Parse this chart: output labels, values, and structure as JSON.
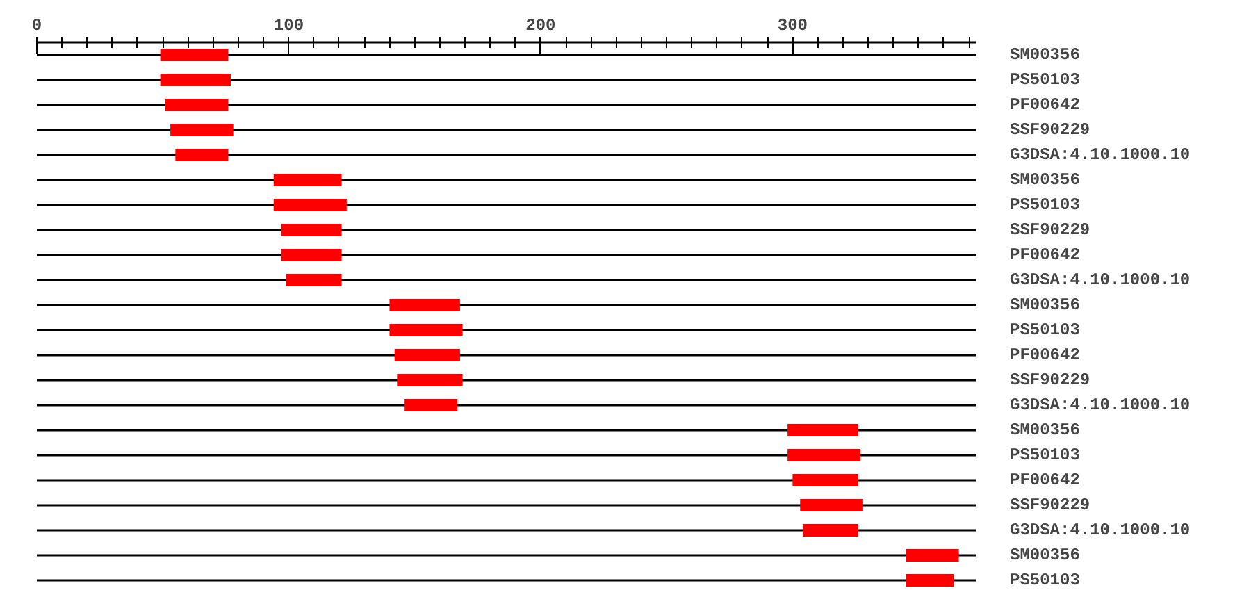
{
  "chart_data": {
    "type": "bar",
    "orientation": "horizontal",
    "categories": [
      "SM00356",
      "PS50103",
      "PF00642",
      "SSF90229",
      "G3DSA:4.10.1000.10",
      "SM00356",
      "PS50103",
      "SSF90229",
      "PF00642",
      "G3DSA:4.10.1000.10",
      "SM00356",
      "PS50103",
      "PF00642",
      "SSF90229",
      "G3DSA:4.10.1000.10",
      "SM00356",
      "PS50103",
      "PF00642",
      "SSF90229",
      "G3DSA:4.10.1000.10",
      "SM00356",
      "PS50103"
    ],
    "base": [
      49,
      49,
      51,
      53,
      55,
      94,
      94,
      97,
      97,
      99,
      140,
      140,
      142,
      143,
      146,
      298,
      298,
      300,
      303,
      304,
      345,
      345
    ],
    "values": [
      27,
      28,
      25,
      25,
      21,
      27,
      29,
      24,
      24,
      22,
      28,
      29,
      26,
      26,
      21,
      28,
      29,
      26,
      25,
      22,
      21,
      19
    ],
    "color": "#ff0000",
    "xlim": [
      0,
      373
    ],
    "xticks": [
      0,
      {
        "value": 10,
        "label": null
      },
      {
        "value": 20,
        "label": null
      },
      {
        "value": 30,
        "label": null
      },
      {
        "value": 40,
        "label": null
      },
      {
        "value": 50,
        "label": null
      },
      {
        "value": 60,
        "label": null
      },
      {
        "value": 70,
        "label": null
      },
      {
        "value": 80,
        "label": null
      },
      {
        "value": 90,
        "label": null
      },
      100,
      {
        "value": 110,
        "label": null
      },
      {
        "value": 120,
        "label": null
      },
      {
        "value": 130,
        "label": null
      },
      {
        "value": 140,
        "label": null
      },
      {
        "value": 150,
        "label": null
      },
      {
        "value": 160,
        "label": null
      },
      {
        "value": 170,
        "label": null
      },
      {
        "value": 180,
        "label": null
      },
      {
        "value": 190,
        "label": null
      },
      200,
      {
        "value": 210,
        "label": null
      },
      {
        "value": 220,
        "label": null
      },
      {
        "value": 230,
        "label": null
      },
      {
        "value": 240,
        "label": null
      },
      {
        "value": 250,
        "label": null
      },
      {
        "value": 260,
        "label": null
      },
      {
        "value": 270,
        "label": null
      },
      {
        "value": 280,
        "label": null
      },
      {
        "value": 290,
        "label": null
      },
      300,
      {
        "value": 310,
        "label": null
      },
      {
        "value": 320,
        "label": null
      },
      {
        "value": 330,
        "label": null
      },
      {
        "value": 340,
        "label": null
      },
      {
        "value": 350,
        "label": null
      },
      {
        "value": 360,
        "label": null
      },
      {
        "value": 370,
        "label": null
      }
    ],
    "grid": "y"
  }
}
